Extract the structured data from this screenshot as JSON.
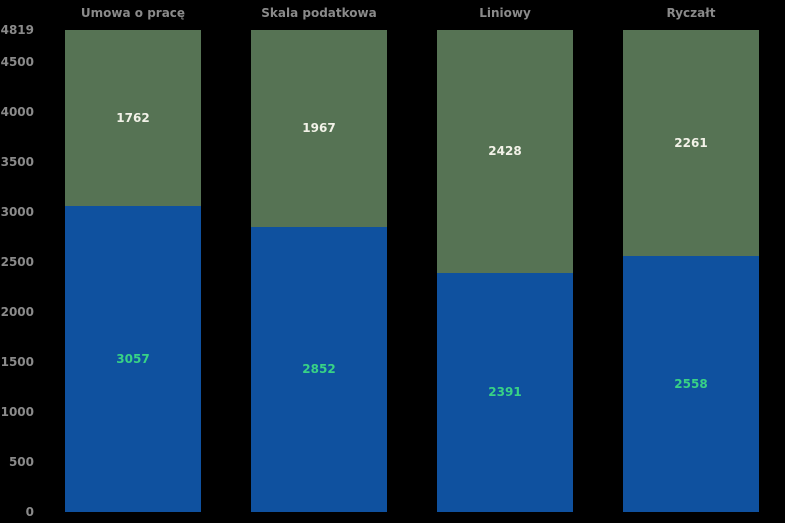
{
  "chart_data": {
    "type": "bar",
    "stacked": true,
    "orientation": "vertical",
    "categories": [
      "Umowa o pracę",
      "Skala podatkowa",
      "Liniowy",
      "Ryczałt"
    ],
    "series": [
      {
        "name": "lower-segment",
        "values": [
          3057,
          2852,
          2391,
          2558
        ],
        "bar_color": "#0f519f",
        "label_color": "#38d286"
      },
      {
        "name": "upper-segment",
        "values": [
          1762,
          1967,
          2428,
          2261
        ],
        "bar_color": "#567354",
        "label_color": "#f2f2e8"
      }
    ],
    "stack_total": 4819,
    "y_ticks": [
      0,
      500,
      1000,
      1500,
      2000,
      2500,
      3000,
      3500,
      4000,
      4500,
      4819
    ],
    "ylim": [
      0,
      4819
    ],
    "xlabel": "",
    "ylabel": "",
    "title": "",
    "legend": null,
    "grid": false,
    "background_color": "#000000",
    "axis_text_color": "#8a8a8a"
  }
}
